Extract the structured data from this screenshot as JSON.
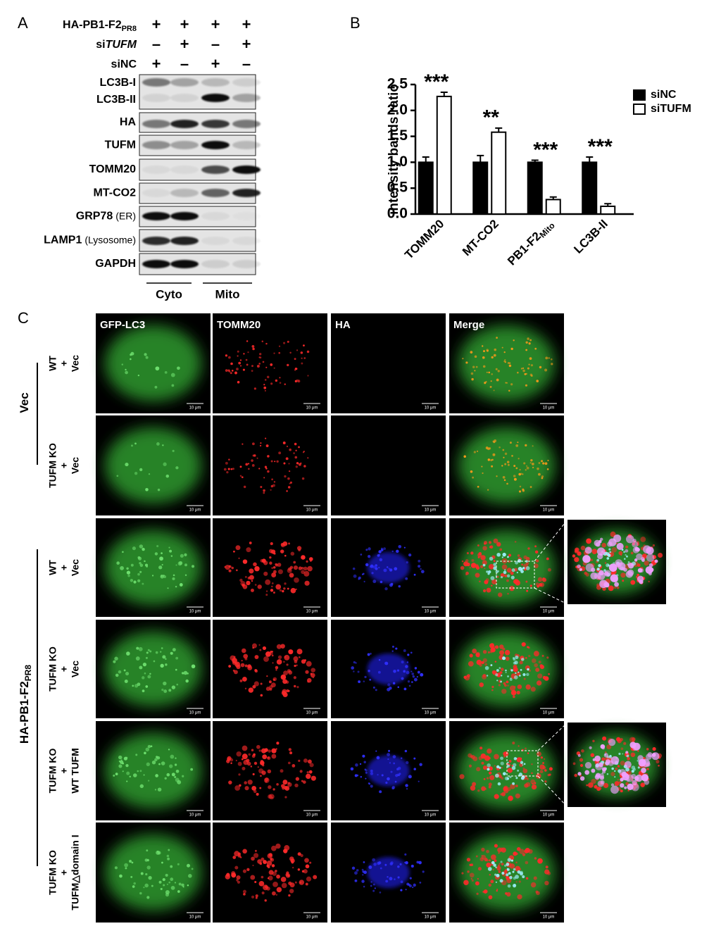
{
  "panel_a": {
    "label": "A",
    "rows": [
      {
        "label": "HA-PB1-F2",
        "sub": "PR8",
        "signs": [
          "+",
          "+",
          "+",
          "+"
        ]
      },
      {
        "label": "si",
        "italic": "TUFM",
        "signs": [
          "–",
          "+",
          "–",
          "+"
        ]
      },
      {
        "label": "siNC",
        "signs": [
          "+",
          "–",
          "+",
          "–"
        ]
      }
    ],
    "blots": [
      {
        "labels": [
          "LC3B-I",
          "LC3B-II"
        ]
      },
      {
        "labels": [
          "HA"
        ]
      },
      {
        "labels": [
          "TUFM"
        ]
      },
      {
        "labels": [
          "TOMM20"
        ]
      },
      {
        "labels": [
          "MT-CO2"
        ]
      },
      {
        "labels": [
          "GRP78"
        ],
        "note": "(ER)"
      },
      {
        "labels": [
          "LAMP1"
        ],
        "note": "(Lysosome)"
      },
      {
        "labels": [
          "GAPDH"
        ]
      }
    ],
    "fractions": [
      "Cyto",
      "Mito"
    ]
  },
  "chart_data": {
    "type": "bar",
    "panel_label": "B",
    "y_label": "intensity bands ratio",
    "categories": [
      "TOMM20",
      "MT-CO2",
      "PB1-F2",
      "LC3B-II"
    ],
    "category_subscripts": [
      null,
      null,
      "Mito",
      null
    ],
    "series": [
      {
        "name": "siNC",
        "color": "#000000",
        "values": [
          1.0,
          1.0,
          1.0,
          1.0
        ],
        "errors": [
          0.1,
          0.13,
          0.04,
          0.1
        ]
      },
      {
        "name": "siTUFM",
        "color": "#ffffff",
        "values": [
          2.27,
          1.58,
          0.28,
          0.15
        ],
        "errors": [
          0.08,
          0.08,
          0.05,
          0.05
        ]
      }
    ],
    "annotations": [
      "***",
      "**",
      "***",
      "***"
    ],
    "ylim": [
      0,
      2.5
    ],
    "yticks": [
      {
        "value": 0,
        "label": "0.0"
      },
      0.5,
      {
        "value": 1,
        "label": "1.0"
      },
      1.5,
      {
        "value": 2,
        "label": "2.0"
      },
      2.5
    ],
    "legend": "top-right"
  },
  "panel_c": {
    "label": "C",
    "columns": [
      "GFP-LC3",
      "TOMM20",
      "HA",
      "Merge"
    ],
    "scale_bar": "10 μm",
    "groups": [
      {
        "label": "Vec"
      },
      {
        "label": "HA-PB1-F2",
        "sub": "PR8"
      }
    ],
    "rows": [
      [
        "WT",
        "+",
        "Vec"
      ],
      [
        "TUFM KO",
        "+",
        "Vec"
      ],
      [
        "WT",
        "+",
        "Vec"
      ],
      [
        "TUFM KO",
        "+",
        "Vec"
      ],
      [
        "TUFM KO",
        "+",
        "WT TUFM"
      ],
      [
        "TUFM KO",
        "+",
        "TUFM△domain I"
      ]
    ]
  }
}
